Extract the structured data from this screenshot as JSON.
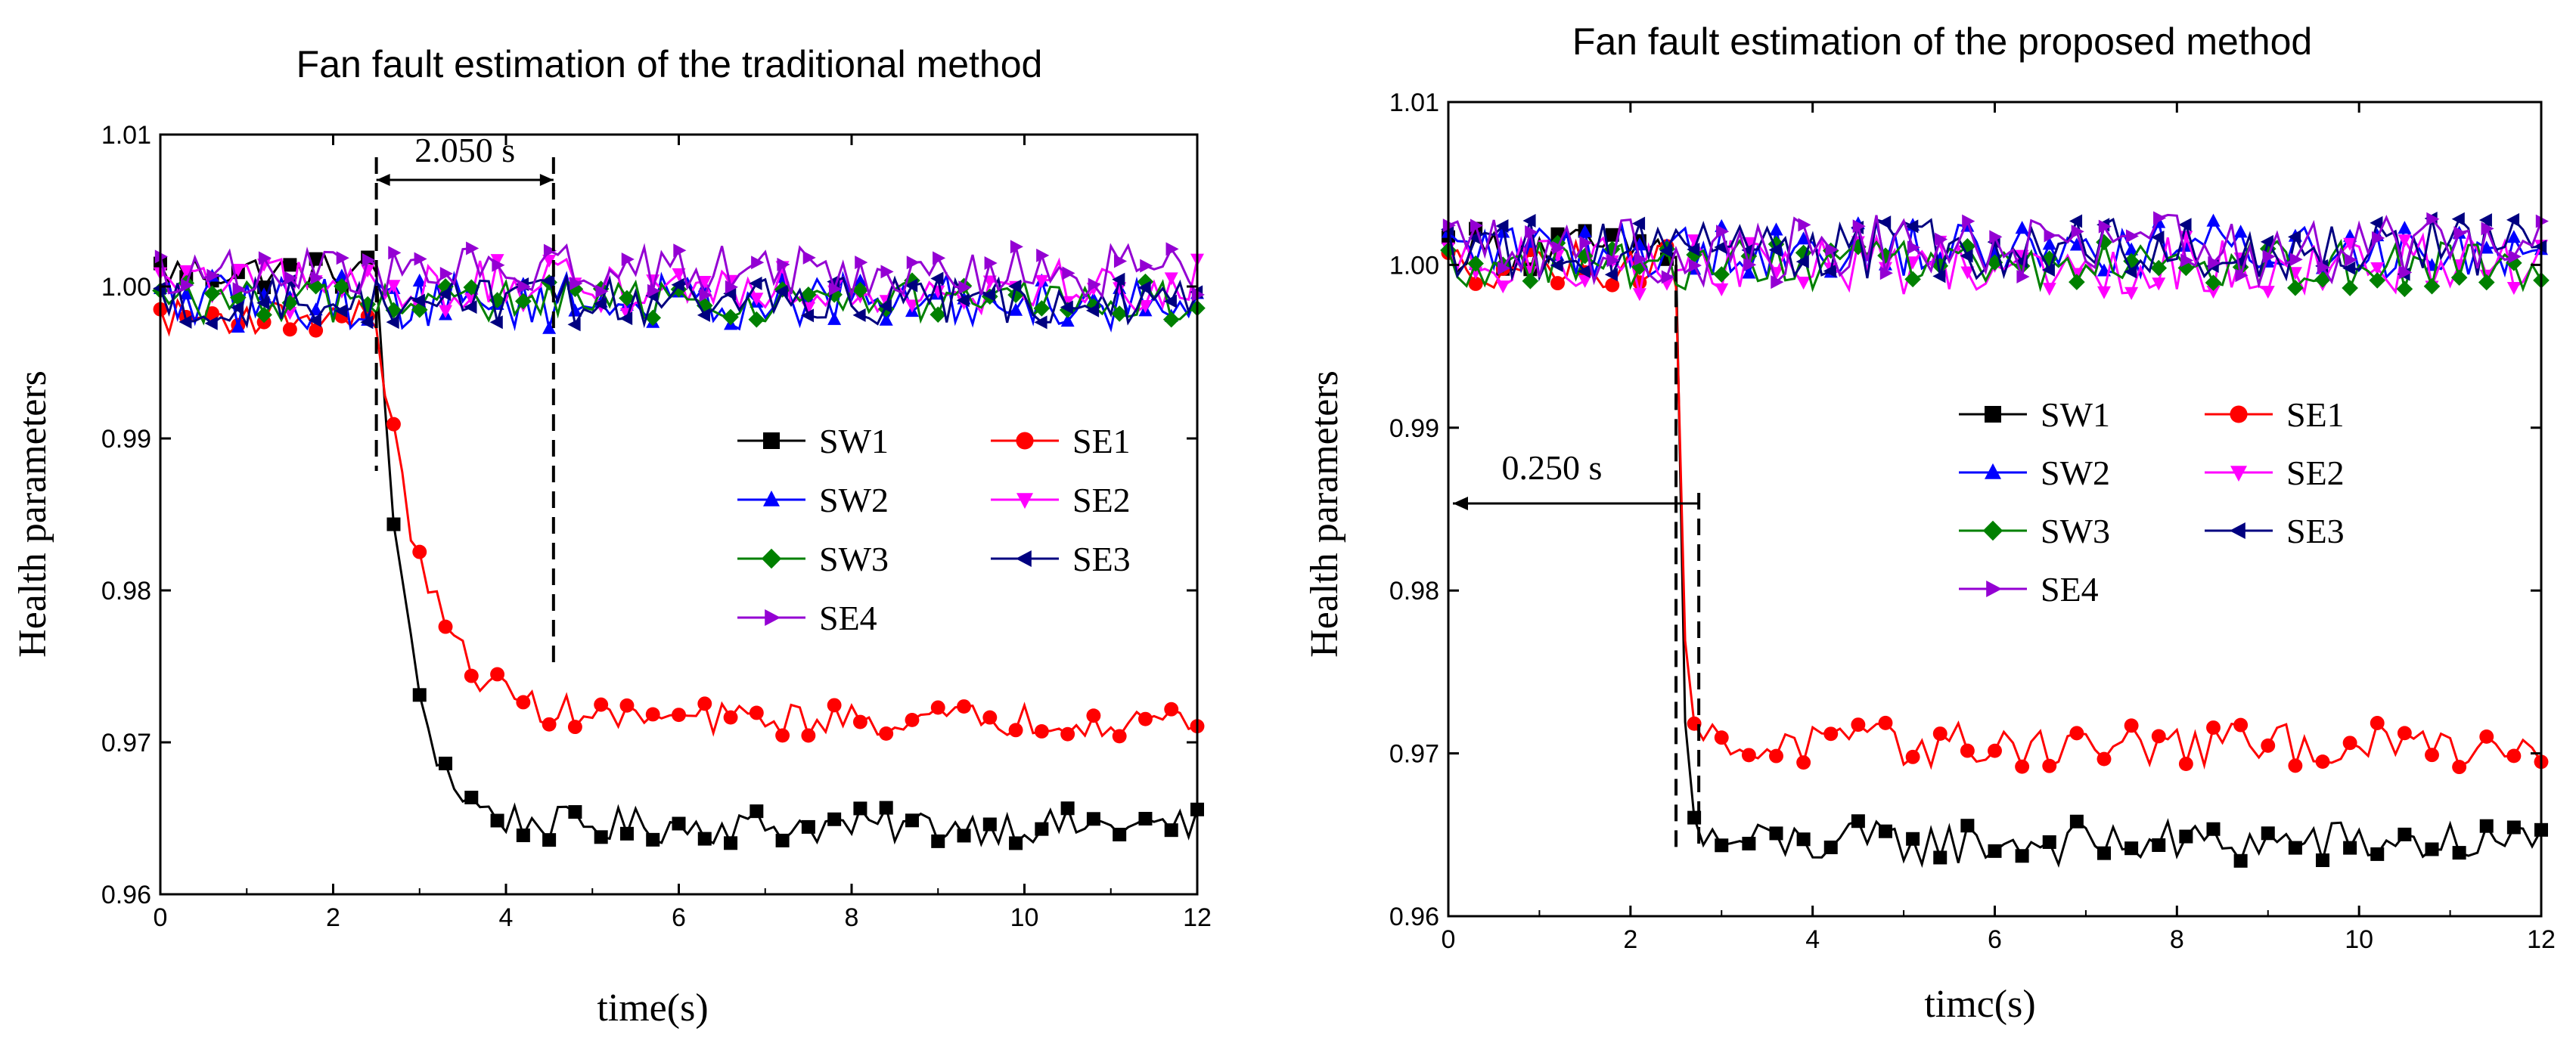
{
  "chart_data": [
    {
      "type": "line",
      "title": "Fan fault estimation of the traditional method",
      "xlabel": "time(s)",
      "ylabel": "Health parameters",
      "xlim": [
        0,
        12
      ],
      "ylim": [
        0.96,
        1.01
      ],
      "xticks": [
        "0",
        "2",
        "4",
        "6",
        "8",
        "10",
        "12"
      ],
      "yticks": [
        "0.96",
        "0.97",
        "0.98",
        "0.99",
        "1.00",
        "1.01"
      ],
      "fault_time_s": 2.5,
      "annotation": {
        "text": "2.050 s",
        "from_s": 2.5,
        "to_s": 4.55
      },
      "legend": [
        "SW1",
        "SE1",
        "SW2",
        "SE2",
        "SW3",
        "SE3",
        "SE4"
      ],
      "series": [
        {
          "name": "SW1",
          "color": "#000000",
          "marker": "square",
          "pre": 1.001,
          "final": 0.9645,
          "tau": 0.35,
          "noise": 0.0012
        },
        {
          "name": "SE1",
          "color": "#ff0000",
          "marker": "circle",
          "pre": 0.998,
          "final": 0.9715,
          "tau": 0.55,
          "noise": 0.0011
        },
        {
          "name": "SW2",
          "color": "#0000ff",
          "marker": "triangle-up",
          "pre": 0.999,
          "final": 0.999,
          "tau": 0,
          "noise": 0.0018
        },
        {
          "name": "SE2",
          "color": "#ff00ff",
          "marker": "triangle-down",
          "pre": 1.0,
          "final": 1.0,
          "tau": 0,
          "noise": 0.0018
        },
        {
          "name": "SW3",
          "color": "#008000",
          "marker": "diamond",
          "pre": 0.999,
          "final": 0.999,
          "tau": 0,
          "noise": 0.0014
        },
        {
          "name": "SE3",
          "color": "#000080",
          "marker": "triangle-left",
          "pre": 0.999,
          "final": 0.999,
          "tau": 0,
          "noise": 0.0016
        },
        {
          "name": "SE4",
          "color": "#9400d3",
          "marker": "triangle-right",
          "pre": 1.001,
          "final": 1.001,
          "tau": 0,
          "noise": 0.0017
        }
      ]
    },
    {
      "type": "line",
      "title": "Fan fault estimation of the proposed method",
      "xlabel": "timc(s)",
      "ylabel": "Health parameters",
      "xlim": [
        0,
        12
      ],
      "ylim": [
        0.96,
        1.01
      ],
      "xticks": [
        "0",
        "2",
        "4",
        "6",
        "8",
        "10",
        "12"
      ],
      "yticks": [
        "0.96",
        "0.97",
        "0.98",
        "0.99",
        "1.00",
        "1.01"
      ],
      "fault_time_s": 2.5,
      "annotation": {
        "text": "0.250 s",
        "from_s": 2.5,
        "to_s": 2.75
      },
      "legend": [
        "SW1",
        "SE1",
        "SW2",
        "SE2",
        "SW3",
        "SE3",
        "SE4"
      ],
      "series": [
        {
          "name": "SW1",
          "color": "#000000",
          "marker": "square",
          "pre": 1.001,
          "final": 0.9645,
          "tau": 0.06,
          "noise": 0.0014
        },
        {
          "name": "SE1",
          "color": "#ff0000",
          "marker": "circle",
          "pre": 1.0,
          "final": 0.9705,
          "tau": 0.07,
          "noise": 0.0014
        },
        {
          "name": "SW2",
          "color": "#0000ff",
          "marker": "triangle-up",
          "pre": 1.001,
          "final": 1.001,
          "tau": 0,
          "noise": 0.0018
        },
        {
          "name": "SE2",
          "color": "#ff00ff",
          "marker": "triangle-down",
          "pre": 1.0,
          "final": 1.0,
          "tau": 0,
          "noise": 0.0018
        },
        {
          "name": "SW3",
          "color": "#008000",
          "marker": "diamond",
          "pre": 1.0,
          "final": 1.0,
          "tau": 0,
          "noise": 0.0015
        },
        {
          "name": "SE3",
          "color": "#000080",
          "marker": "triangle-left",
          "pre": 1.001,
          "final": 1.001,
          "tau": 0,
          "noise": 0.0019
        },
        {
          "name": "SE4",
          "color": "#9400d3",
          "marker": "triangle-right",
          "pre": 1.001,
          "final": 1.001,
          "tau": 0,
          "noise": 0.0022
        }
      ]
    }
  ]
}
